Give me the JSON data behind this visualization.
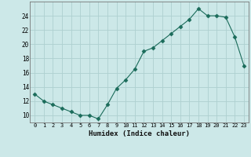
{
  "x": [
    0,
    1,
    2,
    3,
    4,
    5,
    6,
    7,
    8,
    9,
    10,
    11,
    12,
    13,
    14,
    15,
    16,
    17,
    18,
    19,
    20,
    21,
    22,
    23
  ],
  "y": [
    13,
    12,
    11.5,
    11,
    10.5,
    10,
    10,
    9.5,
    11.5,
    13.8,
    15,
    16.5,
    19.0,
    19.5,
    20.5,
    21.5,
    22.5,
    23.5,
    25,
    24,
    24,
    23.8,
    21,
    17
  ],
  "xlabel": "Humidex (Indice chaleur)",
  "xlim": [
    -0.5,
    23.5
  ],
  "ylim": [
    9,
    26
  ],
  "yticks": [
    10,
    12,
    14,
    16,
    18,
    20,
    22,
    24
  ],
  "xticks": [
    0,
    1,
    2,
    3,
    4,
    5,
    6,
    7,
    8,
    9,
    10,
    11,
    12,
    13,
    14,
    15,
    16,
    17,
    18,
    19,
    20,
    21,
    22,
    23
  ],
  "line_color": "#1a6b5a",
  "marker": "D",
  "marker_size": 2.5,
  "bg_color": "#cce8e8",
  "grid_color": "#aed0d0",
  "fig_bg": "#cce8e8"
}
